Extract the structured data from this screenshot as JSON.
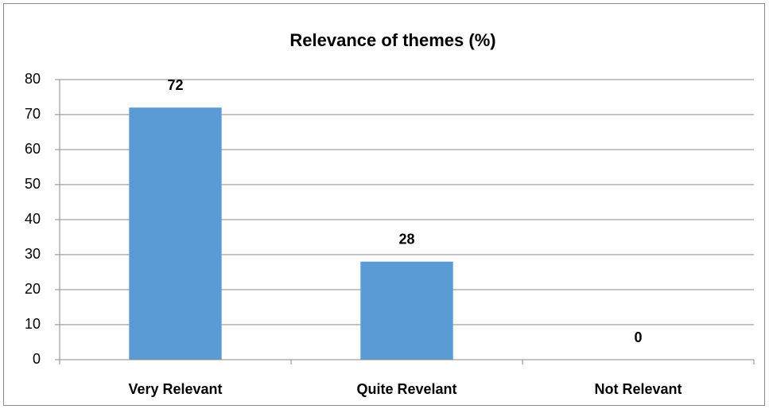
{
  "chart_data": {
    "type": "bar",
    "title": "Relevance of themes (%)",
    "categories": [
      "Very Relevant",
      "Quite Revelant",
      "Not Relevant"
    ],
    "values": [
      72,
      28,
      0
    ],
    "color": "#5b9bd5",
    "ylim": [
      0,
      80
    ],
    "yticks": [
      0,
      10,
      20,
      30,
      40,
      50,
      60,
      70,
      80
    ],
    "grid": true
  }
}
